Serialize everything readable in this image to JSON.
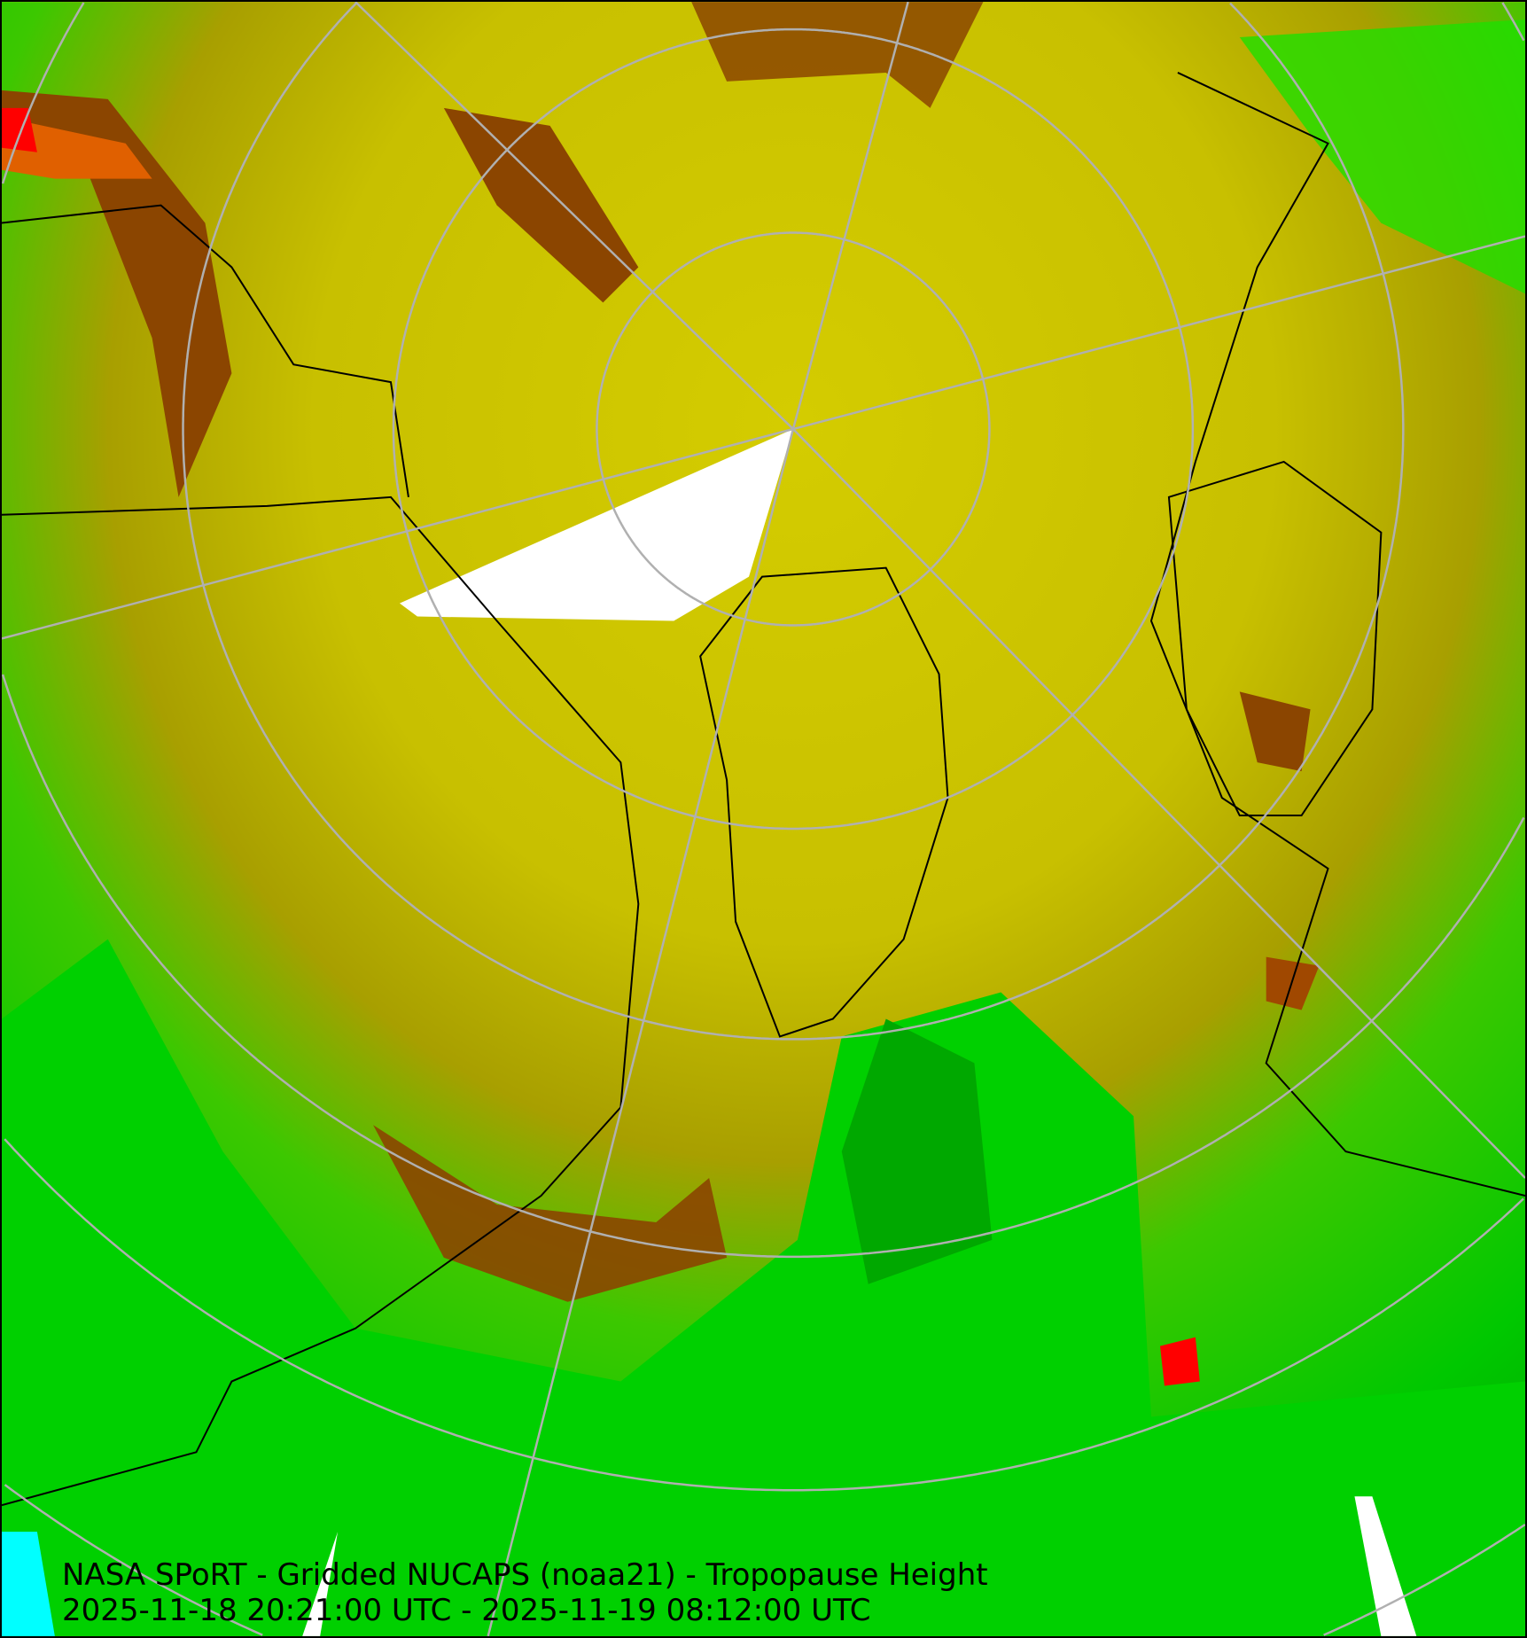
{
  "map": {
    "title": "NASA SPoRT - Gridded NUCAPS (noaa21) - Tropopause Height",
    "time_range": "2025-11-18 20:21:00 UTC - 2025-11-19 08:12:00 UTC",
    "projection": "polar stereographic (north pole)",
    "colors": {
      "yellow": "#e8e800",
      "olive": "#c8c000",
      "dark_olive": "#908800",
      "brown": "#8b4500",
      "orange": "#e06000",
      "red": "#ff0000",
      "green": "#00e000",
      "dark_green": "#009000",
      "cyan": "#00ffff",
      "no_data": "#ffffff",
      "grid": "#b0b0b0",
      "coastlines": "#000000"
    }
  }
}
